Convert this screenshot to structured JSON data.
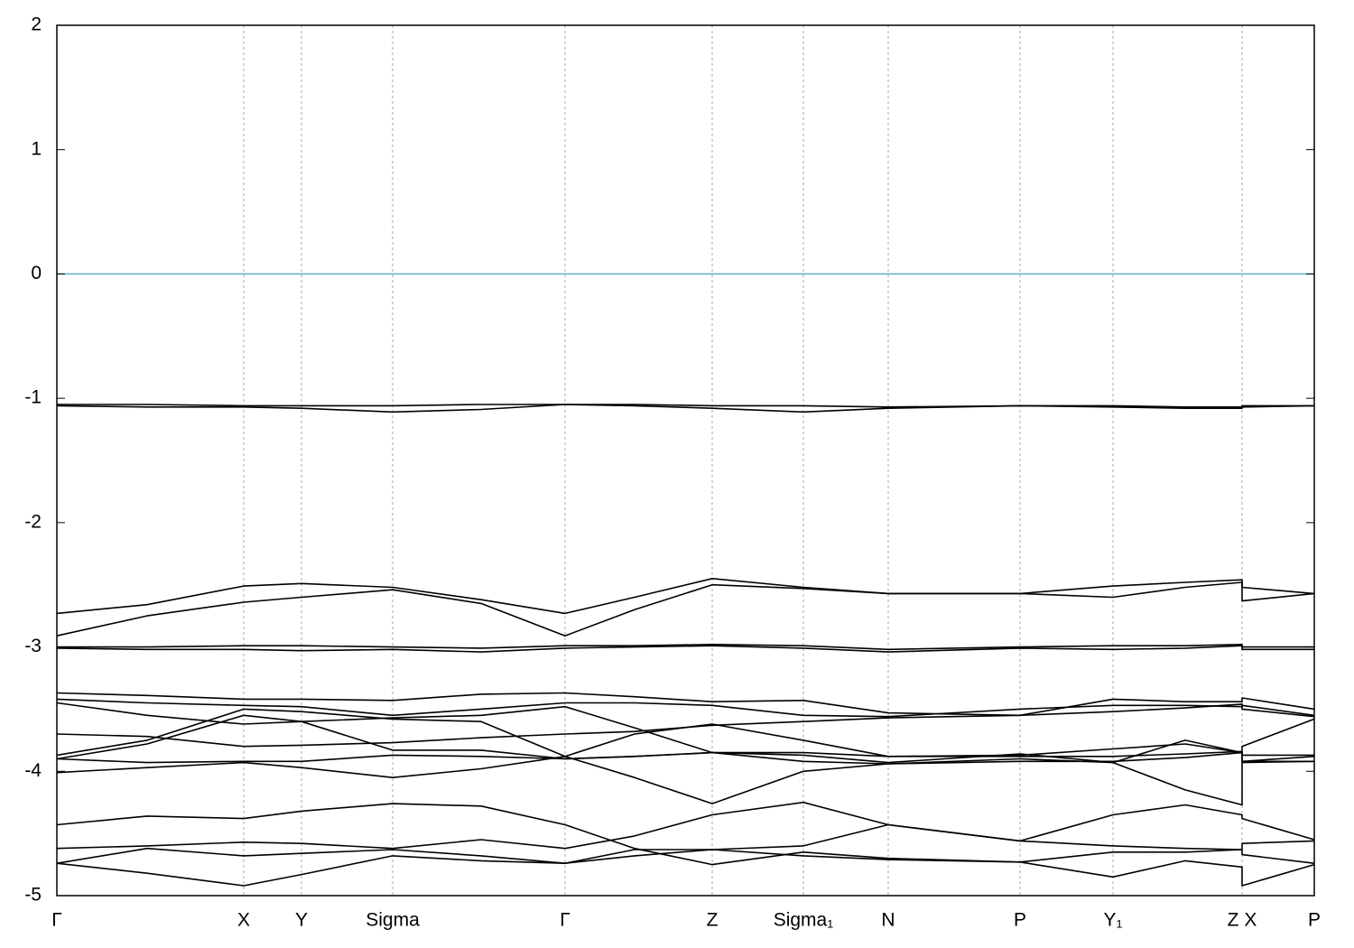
{
  "chart_data": {
    "type": "line",
    "xlim": [
      0,
      1.393
    ],
    "ylim": [
      -5,
      2
    ],
    "yticks": [
      2,
      1,
      0,
      -1,
      -2,
      -3,
      -4,
      -5
    ],
    "xticks": [
      {
        "value": 0,
        "label": "Γ"
      },
      {
        "value": 0.207,
        "label": "X"
      },
      {
        "value": 0.271,
        "label": "Y"
      },
      {
        "value": 0.372,
        "label": "Sigma"
      },
      {
        "value": 0.563,
        "label": "Γ"
      },
      {
        "value": 0.726,
        "label": "Z"
      },
      {
        "value": 0.827,
        "label": "Sigma₁"
      },
      {
        "value": 0.921,
        "label": "N"
      },
      {
        "value": 1.067,
        "label": "P"
      },
      {
        "value": 1.17,
        "label": "Y₁"
      },
      {
        "value": 1.313,
        "label": "Z X"
      },
      {
        "value": 1.393,
        "label": "P"
      }
    ],
    "grid": true,
    "reference_line": {
      "value": 0,
      "color": "#5fb3c8"
    },
    "x": [
      0,
      0.1,
      0.207,
      0.271,
      0.372,
      0.47,
      0.563,
      0.64,
      0.726,
      0.827,
      0.921,
      1.067,
      1.17,
      1.25,
      1.313,
      1.313,
      1.393
    ],
    "series": [
      {
        "color": "#000000",
        "values": [
          -1.05,
          -1.05,
          -1.06,
          -1.06,
          -1.06,
          -1.05,
          -1.05,
          -1.05,
          -1.06,
          -1.06,
          -1.07,
          -1.06,
          -1.06,
          -1.07,
          -1.07,
          -1.06,
          -1.06
        ]
      },
      {
        "color": "#000000",
        "values": [
          -1.06,
          -1.07,
          -1.07,
          -1.08,
          -1.11,
          -1.09,
          -1.05,
          -1.06,
          -1.08,
          -1.11,
          -1.08,
          -1.06,
          -1.07,
          -1.08,
          -1.08,
          -1.07,
          -1.06
        ]
      },
      {
        "color": "#000000",
        "values": [
          -2.73,
          -2.66,
          -2.51,
          -2.49,
          -2.52,
          -2.62,
          -2.73,
          -2.6,
          -2.45,
          -2.52,
          -2.57,
          -2.57,
          -2.51,
          -2.48,
          -2.46,
          -2.52,
          -2.57
        ]
      },
      {
        "color": "#000000",
        "values": [
          -2.91,
          -2.75,
          -2.64,
          -2.6,
          -2.54,
          -2.65,
          -2.91,
          -2.7,
          -2.5,
          -2.53,
          -2.57,
          -2.57,
          -2.6,
          -2.52,
          -2.48,
          -2.63,
          -2.57
        ]
      },
      {
        "color": "#000000",
        "values": [
          -3,
          -3,
          -2.99,
          -2.99,
          -3,
          -3.01,
          -2.99,
          -2.99,
          -2.98,
          -2.99,
          -3.02,
          -3,
          -2.99,
          -2.99,
          -2.98,
          -3,
          -3
        ]
      },
      {
        "color": "#000000",
        "values": [
          -3.01,
          -3.02,
          -3.02,
          -3.03,
          -3.02,
          -3.04,
          -3.01,
          -3,
          -2.99,
          -3.01,
          -3.04,
          -3.01,
          -3.02,
          -3.01,
          -2.99,
          -3.02,
          -3.02
        ]
      },
      {
        "color": "#000000",
        "values": [
          -3.37,
          -3.39,
          -3.42,
          -3.42,
          -3.43,
          -3.38,
          -3.37,
          -3.4,
          -3.44,
          -3.43,
          -3.53,
          -3.55,
          -3.42,
          -3.44,
          -3.44,
          -3.41,
          -3.5
        ]
      },
      {
        "color": "#000000",
        "values": [
          -3.42,
          -3.45,
          -3.47,
          -3.48,
          -3.55,
          -3.5,
          -3.45,
          -3.45,
          -3.47,
          -3.55,
          -3.56,
          -3.5,
          -3.47,
          -3.47,
          -3.48,
          -3.47,
          -3.55
        ]
      },
      {
        "color": "#000000",
        "values": [
          -3.45,
          -3.55,
          -3.62,
          -3.6,
          -3.57,
          -3.55,
          -3.48,
          -3.65,
          -3.85,
          -3.87,
          -3.93,
          -3.86,
          -3.93,
          -3.75,
          -3.85,
          -3.8,
          -3.58
        ]
      },
      {
        "color": "#000000",
        "values": [
          -3.7,
          -3.72,
          -3.8,
          -3.79,
          -3.77,
          -3.73,
          -3.7,
          -3.68,
          -3.63,
          -3.6,
          -3.57,
          -3.55,
          -3.52,
          -3.49,
          -3.46,
          -3.5,
          -3.56
        ]
      },
      {
        "color": "#000000",
        "values": [
          -3.87,
          -3.75,
          -3.5,
          -3.52,
          -3.58,
          -3.6,
          -3.88,
          -3.7,
          -3.62,
          -3.75,
          -3.88,
          -3.87,
          -3.82,
          -3.78,
          -3.85,
          -3.87,
          -3.87
        ]
      },
      {
        "color": "#000000",
        "values": [
          -3.9,
          -3.78,
          -3.55,
          -3.6,
          -3.83,
          -3.83,
          -3.9,
          -3.88,
          -3.85,
          -3.85,
          -3.88,
          -3.88,
          -3.88,
          -3.86,
          -3.84,
          -3.92,
          -3.88
        ]
      },
      {
        "color": "#000000",
        "values": [
          -3.9,
          -3.93,
          -3.92,
          -3.92,
          -3.87,
          -3.88,
          -3.9,
          -3.88,
          -3.85,
          -3.92,
          -3.94,
          -3.92,
          -3.92,
          -3.89,
          -3.85,
          -3.92,
          -3.92
        ]
      },
      {
        "color": "#000000",
        "values": [
          -4.01,
          -3.97,
          -3.93,
          -3.97,
          -4.05,
          -3.98,
          -3.88,
          -4.05,
          -4.26,
          -4,
          -3.94,
          -3.9,
          -3.93,
          -4.15,
          -4.27,
          -3.93,
          -3.92
        ]
      },
      {
        "color": "#000000",
        "values": [
          -4.43,
          -4.36,
          -4.38,
          -4.32,
          -4.26,
          -4.28,
          -4.43,
          -4.62,
          -4.75,
          -4.65,
          -4.7,
          -4.73,
          -4.85,
          -4.72,
          -4.77,
          -4.92,
          -4.75
        ]
      },
      {
        "color": "#000000",
        "values": [
          -4.62,
          -4.6,
          -4.57,
          -4.58,
          -4.62,
          -4.55,
          -4.62,
          -4.52,
          -4.35,
          -4.25,
          -4.43,
          -4.56,
          -4.35,
          -4.27,
          -4.35,
          -4.38,
          -4.55
        ]
      },
      {
        "color": "#000000",
        "values": [
          -4.74,
          -4.62,
          -4.68,
          -4.66,
          -4.63,
          -4.68,
          -4.74,
          -4.63,
          -4.63,
          -4.6,
          -4.43,
          -4.56,
          -4.6,
          -4.62,
          -4.63,
          -4.58,
          -4.56
        ]
      },
      {
        "color": "#000000",
        "values": [
          -4.74,
          -4.82,
          -4.92,
          -4.83,
          -4.68,
          -4.72,
          -4.74,
          -4.68,
          -4.63,
          -4.68,
          -4.71,
          -4.73,
          -4.65,
          -4.65,
          -4.63,
          -4.67,
          -4.74
        ]
      }
    ]
  }
}
